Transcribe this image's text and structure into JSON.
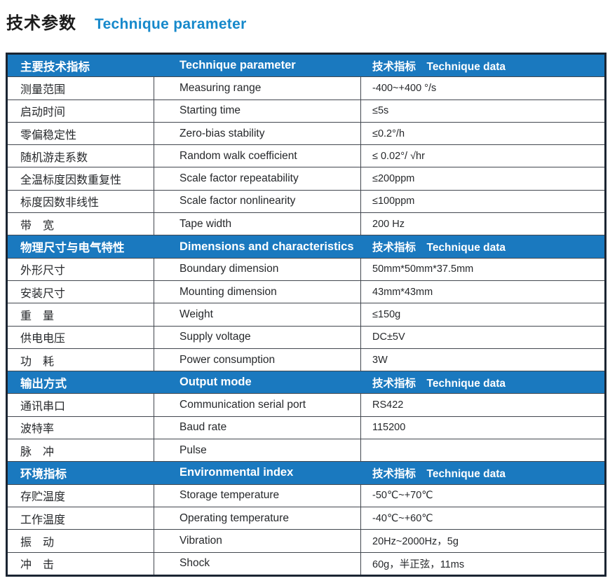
{
  "title": {
    "zh": "技术参数",
    "en": "Technique parameter"
  },
  "colors": {
    "title_en_blue": "#1689cb",
    "header_bg_blue": "#1a79bf",
    "outer_border": "#1b2532",
    "grid_line": "#42474f"
  },
  "table": {
    "sections": [
      {
        "header": {
          "zh": "主要技术指标",
          "en": "Technique parameter",
          "data_label": "技术指标　Technique data"
        },
        "rows": [
          {
            "zh": "测量范围",
            "en": "Measuring range",
            "value": "-400~+400 °/s"
          },
          {
            "zh": "启动时间",
            "en": "Starting time",
            "value": "≤5s"
          },
          {
            "zh": "零偏稳定性",
            "en": "Zero-bias stability",
            "value": "≤0.2°/h"
          },
          {
            "zh": "随机游走系数",
            "en": "Random walk coefficient",
            "value": "≤ 0.02°/ √hr"
          },
          {
            "zh": "全温标度因数重复性",
            "en": "Scale factor repeatability",
            "value": "≤200ppm"
          },
          {
            "zh": "标度因数非线性",
            "en": "Scale factor nonlinearity",
            "value": "≤100ppm"
          },
          {
            "zh": "带　宽",
            "en": "Tape width",
            "value": "200 Hz"
          }
        ]
      },
      {
        "header": {
          "zh": "物理尺寸与电气特性",
          "en": "Dimensions and characteristics",
          "data_label": "技术指标　Technique data"
        },
        "rows": [
          {
            "zh": "外形尺寸",
            "en": "Boundary dimension",
            "value": "50mm*50mm*37.5mm"
          },
          {
            "zh": "安装尺寸",
            "en": "Mounting dimension",
            "value": "43mm*43mm"
          },
          {
            "zh": "重　量",
            "en": "Weight",
            "value": "≤150g"
          },
          {
            "zh": "供电电压",
            "en": "Supply voltage",
            "value": "DC±5V"
          },
          {
            "zh": "功　耗",
            "en": "Power consumption",
            "value": "3W"
          }
        ]
      },
      {
        "header": {
          "zh": "输出方式",
          "en": "Output mode",
          "data_label": "技术指标　Technique data"
        },
        "rows": [
          {
            "zh": "通讯串口",
            "en": "Communication serial port",
            "value": "RS422"
          },
          {
            "zh": "波特率",
            "en": "Baud rate",
            "value": "115200"
          },
          {
            "zh": "脉　冲",
            "en": "Pulse",
            "value": ""
          }
        ]
      },
      {
        "header": {
          "zh": "环境指标",
          "en": "Environmental index",
          "data_label": "技术指标　Technique data"
        },
        "rows": [
          {
            "zh": "存贮温度",
            "en": "Storage temperature",
            "value": "-50℃~+70℃"
          },
          {
            "zh": "工作温度",
            "en": "Operating temperature",
            "value": "-40℃~+60℃"
          },
          {
            "zh": "振　动",
            "en": "Vibration",
            "value": "20Hz~2000Hz，5g"
          },
          {
            "zh": "冲　击",
            "en": "Shock",
            "value": "60g，半正弦，11ms"
          }
        ]
      }
    ]
  }
}
